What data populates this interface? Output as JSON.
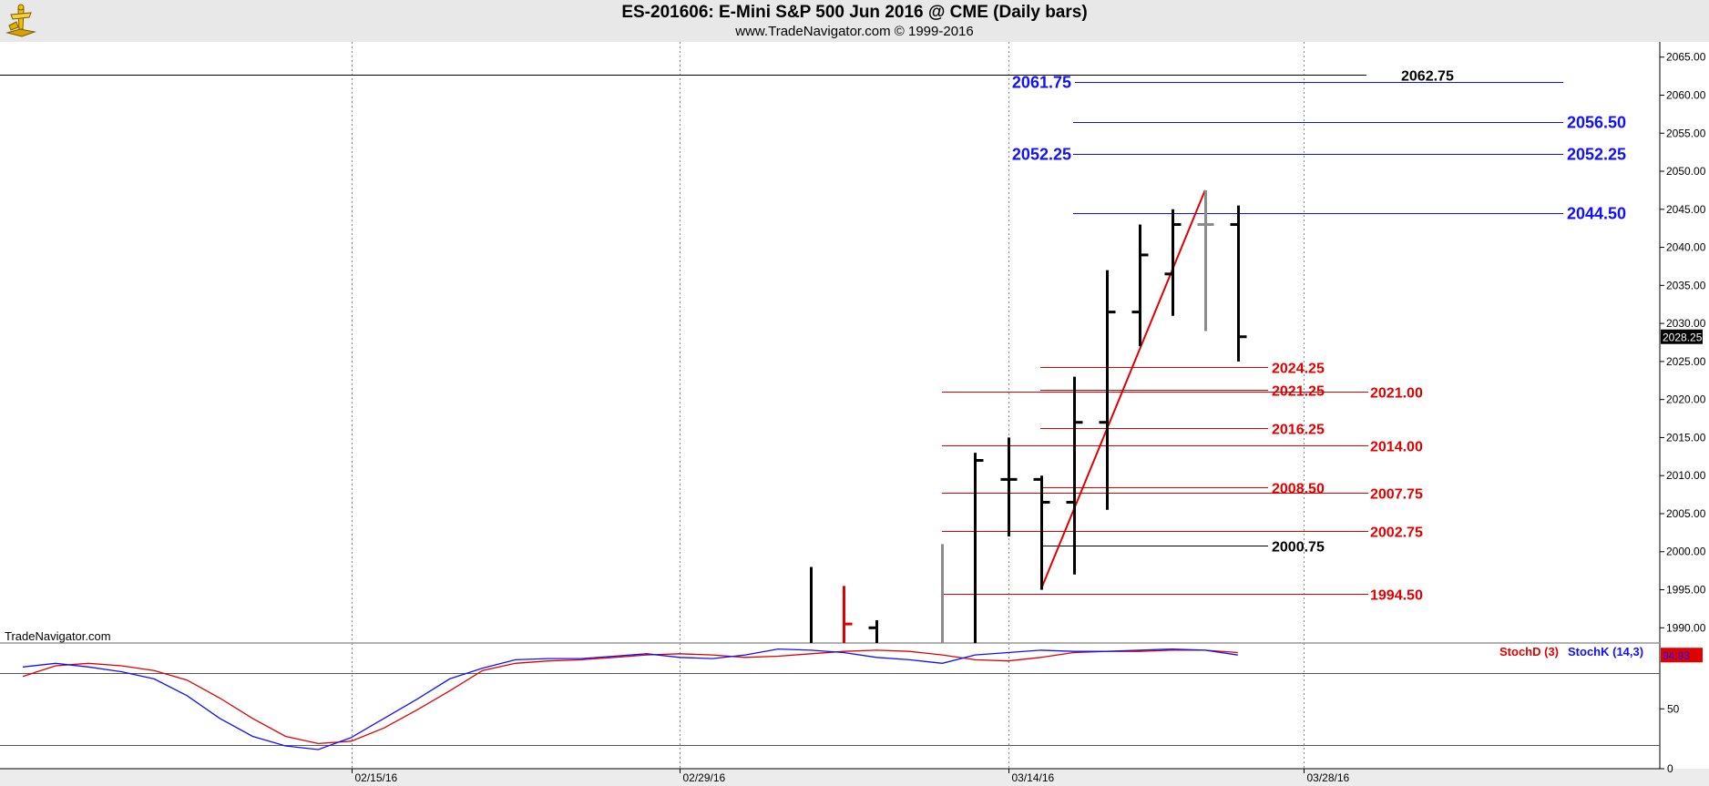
{
  "title": "ES-201606:  E-Mini S&P 500 Jun 2016 @ CME  (Daily bars)",
  "subtitle": "www.TradeNavigator.com © 1999-2016",
  "watermark": "TradeNavigator.com",
  "colors": {
    "background": "#ffffff",
    "header": "#e8e8e8",
    "bars": "#000000",
    "grey_bars": "#8c8c8c",
    "red": "#e00000",
    "blue": "#1010ff"
  },
  "chart_data": [
    {
      "type": "bar",
      "subtype": "ohlc",
      "ylim": [
        1988,
        2067
      ],
      "y_ticks": [
        "2065.00",
        "2060.00",
        "2055.00",
        "2050.00",
        "2045.00",
        "2040.00",
        "2035.00",
        "2030.00",
        "2025.00",
        "2020.00",
        "2015.00",
        "2010.00",
        "2005.00",
        "2000.00",
        "1995.00",
        "1990.00"
      ],
      "x_ticks": [
        "02/15/16",
        "02/29/16",
        "03/14/16",
        "03/28/16"
      ],
      "grid": "vertical dotted",
      "last_price": "2028.25",
      "bars": [
        {
          "date": "03/04/16",
          "high": 1998.0,
          "low": 1988.0,
          "color": "black"
        },
        {
          "date": "03/07/16",
          "high": 1995.5,
          "low": 1988.0,
          "close": 1990.5,
          "color": "red"
        },
        {
          "date": "03/08/16",
          "high": 1991.0,
          "low": 1988.0,
          "open": 1990.0,
          "color": "black"
        },
        {
          "date": "03/10/16",
          "high": 2001.0,
          "low": 1988.0,
          "color": "grey"
        },
        {
          "date": "03/11/16",
          "high": 2013.0,
          "low": 1988.0,
          "close": 2012.0,
          "color": "black"
        },
        {
          "date": "03/14/16",
          "high": 2015.0,
          "low": 2002.0,
          "open": 2009.5,
          "close": 2009.5,
          "color": "black"
        },
        {
          "date": "03/15/16",
          "high": 2010.0,
          "low": 1995.0,
          "open": 2009.5,
          "close": 2006.5,
          "color": "black"
        },
        {
          "date": "03/16/16",
          "high": 2023.0,
          "low": 1997.0,
          "open": 2006.5,
          "close": 2017.0,
          "color": "black"
        },
        {
          "date": "03/17/16",
          "high": 2037.0,
          "low": 2005.5,
          "open": 2017.0,
          "close": 2031.5,
          "color": "black"
        },
        {
          "date": "03/18/16",
          "high": 2043.0,
          "low": 2027.0,
          "open": 2031.5,
          "close": 2039.0,
          "color": "black"
        },
        {
          "date": "03/21/16",
          "high": 2045.0,
          "low": 2031.0,
          "open": 2036.5,
          "close": 2043.0,
          "color": "black"
        },
        {
          "date": "03/22/16",
          "high": 2047.5,
          "low": 2029.0,
          "open": 2043.0,
          "close": 2043.0,
          "color": "grey"
        },
        {
          "date": "03/23/16",
          "high": 2045.5,
          "low": 2025.0,
          "open": 2043.0,
          "close": 2028.25,
          "color": "black"
        }
      ],
      "trend_line": {
        "color": "red",
        "from": {
          "date": "03/15/16",
          "price": 1995.0
        },
        "to": {
          "date": "03/22/16",
          "price": 2047.5
        }
      },
      "levels": [
        {
          "label": "2062.75",
          "price": 2062.75,
          "color": "black",
          "style": "line"
        },
        {
          "label": "2061.75",
          "price": 2061.75,
          "color": "blue",
          "side": "left"
        },
        {
          "label": "2056.50",
          "price": 2056.5,
          "color": "blue",
          "side": "right"
        },
        {
          "label": "2052.25",
          "price": 2052.25,
          "color": "blue",
          "side": "left"
        },
        {
          "label": "2052.25",
          "price": 2052.25,
          "color": "blue",
          "side": "right"
        },
        {
          "label": "2044.50",
          "price": 2044.5,
          "color": "blue",
          "side": "right"
        },
        {
          "label": "2024.25",
          "price": 2024.25,
          "color": "red",
          "side": "right"
        },
        {
          "label": "2021.25",
          "price": 2021.25,
          "color": "red",
          "side": "right"
        },
        {
          "label": "2021.00",
          "price": 2021.0,
          "color": "red",
          "side": "right"
        },
        {
          "label": "2016.25",
          "price": 2016.25,
          "color": "red",
          "side": "right"
        },
        {
          "label": "2014.00",
          "price": 2014.0,
          "color": "red",
          "side": "right"
        },
        {
          "label": "2008.50",
          "price": 2008.5,
          "color": "red",
          "side": "right"
        },
        {
          "label": "2007.75",
          "price": 2007.75,
          "color": "red",
          "side": "right"
        },
        {
          "label": "2002.75",
          "price": 2002.75,
          "color": "red",
          "side": "right"
        },
        {
          "label": "2000.75",
          "price": 2000.75,
          "color": "black",
          "side": "right"
        },
        {
          "label": "1994.50",
          "price": 1994.5,
          "color": "red",
          "side": "right"
        }
      ]
    },
    {
      "type": "line",
      "ylim": [
        0,
        105
      ],
      "y_ticks": [
        "50",
        "0"
      ],
      "hlines": [
        80,
        20
      ],
      "last_value": "94.93",
      "series": [
        {
          "name": "StochD (3)",
          "color": "red",
          "values": [
            {
              "date": "01/29/16",
              "value": 77
            },
            {
              "date": "02/01/16",
              "value": 86
            },
            {
              "date": "02/02/16",
              "value": 88
            },
            {
              "date": "02/03/16",
              "value": 86
            },
            {
              "date": "02/04/16",
              "value": 82
            },
            {
              "date": "02/05/16",
              "value": 74
            },
            {
              "date": "02/08/16",
              "value": 59
            },
            {
              "date": "02/09/16",
              "value": 42
            },
            {
              "date": "02/10/16",
              "value": 27
            },
            {
              "date": "02/11/16",
              "value": 21
            },
            {
              "date": "02/12/16",
              "value": 23
            },
            {
              "date": "02/16/16",
              "value": 34
            },
            {
              "date": "02/17/16",
              "value": 49
            },
            {
              "date": "02/18/16",
              "value": 65
            },
            {
              "date": "02/19/16",
              "value": 82
            },
            {
              "date": "02/22/16",
              "value": 88
            },
            {
              "date": "02/23/16",
              "value": 90
            },
            {
              "date": "02/24/16",
              "value": 91
            },
            {
              "date": "02/25/16",
              "value": 93
            },
            {
              "date": "02/26/16",
              "value": 95
            },
            {
              "date": "02/29/16",
              "value": 96
            },
            {
              "date": "03/01/16",
              "value": 95
            },
            {
              "date": "03/02/16",
              "value": 93
            },
            {
              "date": "03/03/16",
              "value": 94
            },
            {
              "date": "03/04/16",
              "value": 96
            },
            {
              "date": "03/07/16",
              "value": 98
            },
            {
              "date": "03/08/16",
              "value": 99
            },
            {
              "date": "03/09/16",
              "value": 98
            },
            {
              "date": "03/10/16",
              "value": 95
            },
            {
              "date": "03/11/16",
              "value": 91
            },
            {
              "date": "03/14/16",
              "value": 90
            },
            {
              "date": "03/15/16",
              "value": 93
            },
            {
              "date": "03/16/16",
              "value": 97
            },
            {
              "date": "03/17/16",
              "value": 98
            },
            {
              "date": "03/18/16",
              "value": 98
            },
            {
              "date": "03/21/16",
              "value": 99
            },
            {
              "date": "03/22/16",
              "value": 99
            },
            {
              "date": "03/23/16",
              "value": 97
            }
          ]
        },
        {
          "name": "StochK (14,3)",
          "color": "blue",
          "values": [
            {
              "date": "01/29/16",
              "value": 85
            },
            {
              "date": "02/01/16",
              "value": 88
            },
            {
              "date": "02/02/16",
              "value": 85
            },
            {
              "date": "02/03/16",
              "value": 81
            },
            {
              "date": "02/04/16",
              "value": 75
            },
            {
              "date": "02/05/16",
              "value": 61
            },
            {
              "date": "02/08/16",
              "value": 42
            },
            {
              "date": "02/09/16",
              "value": 27
            },
            {
              "date": "02/10/16",
              "value": 19
            },
            {
              "date": "02/11/16",
              "value": 16
            },
            {
              "date": "02/12/16",
              "value": 26
            },
            {
              "date": "02/16/16",
              "value": 42
            },
            {
              "date": "02/17/16",
              "value": 58
            },
            {
              "date": "02/18/16",
              "value": 75
            },
            {
              "date": "02/19/16",
              "value": 84
            },
            {
              "date": "02/22/16",
              "value": 91
            },
            {
              "date": "02/23/16",
              "value": 92
            },
            {
              "date": "02/24/16",
              "value": 92
            },
            {
              "date": "02/25/16",
              "value": 94
            },
            {
              "date": "02/26/16",
              "value": 96
            },
            {
              "date": "02/29/16",
              "value": 93
            },
            {
              "date": "03/01/16",
              "value": 92
            },
            {
              "date": "03/02/16",
              "value": 95
            },
            {
              "date": "03/03/16",
              "value": 100
            },
            {
              "date": "03/04/16",
              "value": 99
            },
            {
              "date": "03/07/16",
              "value": 97
            },
            {
              "date": "03/08/16",
              "value": 93
            },
            {
              "date": "03/09/16",
              "value": 91
            },
            {
              "date": "03/10/16",
              "value": 88
            },
            {
              "date": "03/11/16",
              "value": 95
            },
            {
              "date": "03/14/16",
              "value": 97
            },
            {
              "date": "03/15/16",
              "value": 99
            },
            {
              "date": "03/16/16",
              "value": 98
            },
            {
              "date": "03/17/16",
              "value": 98
            },
            {
              "date": "03/18/16",
              "value": 99
            },
            {
              "date": "03/21/16",
              "value": 100
            },
            {
              "date": "03/22/16",
              "value": 99
            },
            {
              "date": "03/23/16",
              "value": 94.93
            }
          ]
        }
      ]
    }
  ]
}
